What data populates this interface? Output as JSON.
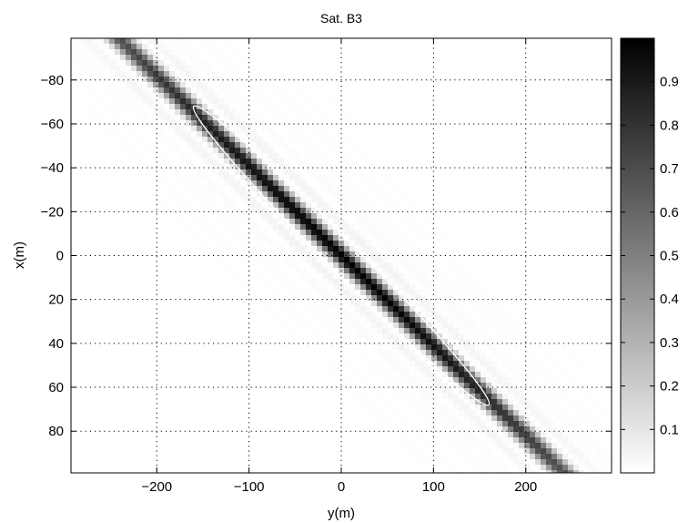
{
  "chart_data": {
    "type": "heatmap",
    "title": "Sat. B3",
    "xlabel": "y(m)",
    "ylabel": "x(m)",
    "xlim": [
      -293,
      293
    ],
    "ylim": [
      -99,
      99
    ],
    "y_reversed": true,
    "x_ticks": [
      -200,
      -100,
      0,
      100,
      200
    ],
    "x_tick_labels": [
      "−200",
      "−100",
      "0",
      "100",
      "200"
    ],
    "y_ticks": [
      -80,
      -60,
      -40,
      -20,
      0,
      20,
      40,
      60,
      80
    ],
    "y_tick_labels": [
      "−80",
      "−60",
      "−40",
      "−20",
      "0",
      "20",
      "40",
      "60",
      "80"
    ],
    "grid": true,
    "colormap": "gray-reversed",
    "colorbar": {
      "range": [
        0.0,
        1.0
      ],
      "ticks": [
        0.1,
        0.2,
        0.3,
        0.4,
        0.5,
        0.6,
        0.7,
        0.8,
        0.9
      ],
      "tick_labels": [
        "0.1",
        "0.2",
        "0.3",
        "0.4",
        "0.5",
        "0.6",
        "0.7",
        "0.8",
        "0.9"
      ]
    },
    "main_lobe": {
      "center": [
        0,
        0
      ],
      "direction": [
        1.0,
        0.41
      ],
      "peak": 1.0
    },
    "ellipse": {
      "center": [
        0,
        0
      ],
      "endpoints": [
        [
          -160,
          -68
        ],
        [
          160,
          68
        ]
      ],
      "semi_minor": 7,
      "color": "#ffffff"
    }
  }
}
